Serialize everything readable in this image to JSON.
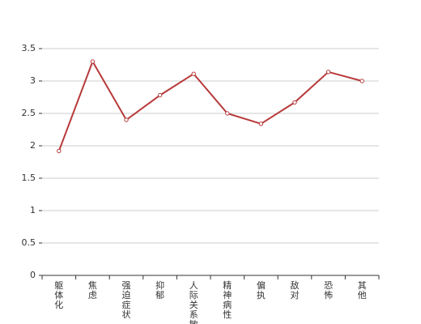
{
  "chart_data": {
    "type": "line",
    "categories": [
      "躯体化",
      "焦虑",
      "强迫症状",
      "抑郁",
      "人际关系敏感",
      "精神病性",
      "偏执",
      "敌对",
      "恐怖",
      "其他"
    ],
    "series": [
      {
        "color": "#b73a3a",
        "values": [
          1.92,
          3.3,
          2.4,
          2.78,
          3.11,
          2.5,
          2.34,
          2.67,
          3.14,
          3.0
        ]
      }
    ],
    "ylim": [
      0,
      3.5
    ],
    "yticks": [
      0,
      0.5,
      1,
      1.5,
      2,
      2.5,
      3,
      3.5
    ],
    "grid": true
  }
}
